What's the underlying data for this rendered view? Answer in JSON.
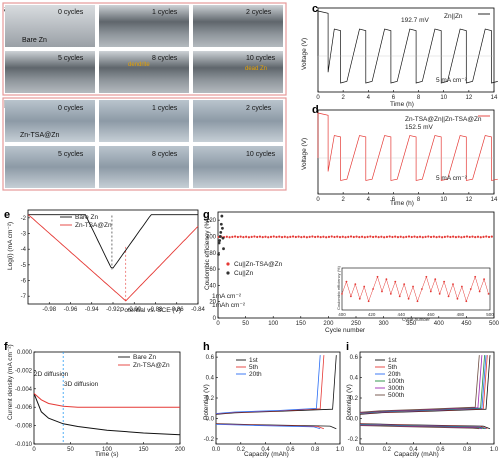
{
  "panel_a": {
    "label": "a",
    "tiles": [
      "0 cycles",
      "1 cycles",
      "2 cycles",
      "5 cycles",
      "8 cycles",
      "10 cycles"
    ],
    "sample": "Bare Zn",
    "annot_dendrite": "dendrite",
    "annot_dead": "dead Zn",
    "border_color": "#e79999"
  },
  "panel_b": {
    "label": "b",
    "tiles": [
      "0 cycles",
      "1 cycles",
      "2 cycles",
      "5 cycles",
      "8 cycles",
      "10 cycles"
    ],
    "sample": "Zn-TSA@Zn",
    "border_color": "#e79999"
  },
  "panel_c": {
    "label": "c",
    "legend": "Zn||Zn",
    "annot": "192.7 mV",
    "current": "5 mA cm⁻²",
    "xlabel": "Time (h)",
    "ylabel": "Voltage (V)",
    "color": "#111111"
  },
  "panel_d": {
    "label": "d",
    "legend": "Zn-TSA@Zn||Zn-TSA@Zn",
    "annot": "152.5 mV",
    "current": "5 mA cm⁻²",
    "xlabel": "Time (h)",
    "ylabel": "Voltage (V)",
    "color": "#e53935"
  },
  "panel_e": {
    "label": "e",
    "legend": [
      "Bare Zn",
      "Zn-TSA@Zn"
    ],
    "xlabel": "Potential vs. SCE (V)",
    "ylabel": "Log(i) (mA cm⁻²)"
  },
  "panel_f": {
    "label": "f",
    "legend": [
      "Bare Zn",
      "Zn-TSA@Zn"
    ],
    "annot_2d": "2D diffusion",
    "annot_3d": "3D diffusion",
    "xlabel": "Time (s)",
    "ylabel": "Current density (mA cm⁻²)"
  },
  "panel_g": {
    "label": "g",
    "legend": [
      "Cu||Zn-TSA@Zn",
      "Cu||Zn"
    ],
    "cond1": "1mA cm⁻²",
    "cond2": "1mAh cm⁻²",
    "xlabel": "Cycle number",
    "ylabel": "Coulombic efficiency (%)",
    "inset_xlabel": "Cycle number",
    "inset_ylabel": "Coulombic efficiency (%)"
  },
  "panel_h": {
    "label": "h",
    "legend": [
      "1st",
      "5th",
      "20th"
    ],
    "xlabel": "Capacity (mAh)",
    "ylabel": "Potential (V)"
  },
  "panel_i": {
    "label": "i",
    "legend": [
      "1st",
      "5th",
      "20th",
      "100th",
      "300th",
      "500th"
    ],
    "xlabel": "Capacity (mAh)",
    "ylabel": "Potential (V)"
  },
  "chart_data": [
    {
      "panel": "c",
      "type": "line",
      "xlabel": "Time (h)",
      "ylabel": "Voltage (V)",
      "xlim": [
        0,
        14
      ],
      "ylim": [
        -0.12,
        0.16
      ],
      "xticks": [
        0,
        2,
        4,
        6,
        8,
        10,
        12,
        14
      ],
      "yticks": [],
      "series": [
        {
          "name": "Zn||Zn",
          "values_desc": "square-wave",
          "high": 0.09,
          "low": -0.09,
          "spike": 0.15,
          "period_h": 1
        }
      ]
    },
    {
      "panel": "d",
      "type": "line",
      "xlabel": "Time (h)",
      "ylabel": "Voltage (V)",
      "xlim": [
        0,
        14
      ],
      "ylim": [
        -0.12,
        0.16
      ],
      "xticks": [
        0,
        2,
        4,
        6,
        8,
        10,
        12,
        14
      ],
      "yticks": [],
      "series": [
        {
          "name": "Zn-TSA@Zn||Zn-TSA@Zn",
          "high": 0.075,
          "low": -0.075,
          "spike": 0.15,
          "period_h": 1
        }
      ]
    },
    {
      "panel": "e",
      "type": "line",
      "xlabel": "Potential vs. SCE (V)",
      "ylabel": "Log(i) (mA cm⁻²)",
      "xlim": [
        -1.0,
        -0.84
      ],
      "ylim": [
        -7.5,
        -1.5
      ],
      "xticks": [
        -0.98,
        -0.96,
        -0.94,
        -0.92,
        -0.9,
        -0.88,
        -0.86,
        -0.84
      ],
      "yticks": [
        -2,
        -3,
        -4,
        -5,
        -6,
        -7
      ],
      "series": [
        {
          "name": "Bare Zn",
          "corr_potential": -0.921,
          "min_logi": -5.3
        },
        {
          "name": "Zn-TSA@Zn",
          "corr_potential": -0.908,
          "min_logi": -7.3
        }
      ]
    },
    {
      "panel": "f",
      "type": "line",
      "xlabel": "Time (s)",
      "ylabel": "Current density (mA cm⁻²)",
      "xlim": [
        0,
        200
      ],
      "ylim": [
        -0.01,
        0.0
      ],
      "xticks": [
        0,
        50,
        100,
        150,
        200
      ],
      "yticks": [
        0.0,
        -0.002,
        -0.004,
        -0.006,
        -0.008,
        -0.01
      ],
      "series": [
        {
          "name": "Bare Zn",
          "x": [
            0,
            10,
            20,
            40,
            60,
            100,
            150,
            200
          ],
          "y": [
            -0.0045,
            -0.0065,
            -0.0072,
            -0.0078,
            -0.0081,
            -0.0085,
            -0.0088,
            -0.009
          ]
        },
        {
          "name": "Zn-TSA@Zn",
          "x": [
            0,
            10,
            20,
            40,
            60,
            100,
            150,
            200
          ],
          "y": [
            -0.0045,
            -0.0052,
            -0.0056,
            -0.0059,
            -0.006,
            -0.006,
            -0.006,
            -0.006
          ]
        }
      ],
      "vline_x": 40
    },
    {
      "panel": "g",
      "type": "scatter",
      "xlabel": "Cycle number",
      "ylabel": "Coulombic efficiency (%)",
      "xlim": [
        0,
        500
      ],
      "ylim": [
        0,
        130
      ],
      "xticks": [
        0,
        50,
        100,
        150,
        200,
        250,
        300,
        350,
        400,
        450,
        500
      ],
      "yticks": [
        0,
        20,
        40,
        60,
        80,
        100,
        120
      ],
      "series": [
        {
          "name": "Cu||Zn-TSA@Zn",
          "steady": 99.5
        },
        {
          "name": "Cu||Zn",
          "x": [
            1,
            2,
            3,
            4,
            5,
            6,
            7,
            8,
            9,
            10
          ],
          "y": [
            78,
            92,
            95,
            100,
            105,
            115,
            125,
            110,
            98,
            85
          ]
        }
      ],
      "inset": {
        "xlim": [
          400,
          500
        ],
        "ylim": [
          99.0,
          100.2
        ],
        "xticks": [
          400,
          420,
          440,
          460,
          480,
          500
        ]
      }
    },
    {
      "panel": "h",
      "type": "line",
      "xlabel": "Capacity (mAh)",
      "ylabel": "Potential (V)",
      "xlim": [
        0,
        1.0
      ],
      "ylim": [
        -0.25,
        0.65
      ],
      "xticks": [
        0.0,
        0.2,
        0.4,
        0.6,
        0.8,
        1.0
      ],
      "yticks": [
        -0.2,
        0.0,
        0.2,
        0.4,
        0.6
      ],
      "series": [
        {
          "name": "1st",
          "end_capacity": 0.97
        },
        {
          "name": "5th",
          "end_capacity": 0.87
        },
        {
          "name": "20th",
          "end_capacity": 0.84
        }
      ]
    },
    {
      "panel": "i",
      "type": "line",
      "xlabel": "Capacity (mAh)",
      "ylabel": "Potential (V)",
      "xlim": [
        0,
        1.0
      ],
      "ylim": [
        -0.25,
        0.65
      ],
      "xticks": [
        0.0,
        0.2,
        0.4,
        0.6,
        0.8,
        1.0
      ],
      "yticks": [
        -0.2,
        0.0,
        0.2,
        0.4,
        0.6
      ],
      "series": [
        {
          "name": "1st",
          "end_capacity": 0.97
        },
        {
          "name": "5th",
          "end_capacity": 0.95
        },
        {
          "name": "20th",
          "end_capacity": 0.94
        },
        {
          "name": "100th",
          "end_capacity": 0.93
        },
        {
          "name": "300th",
          "end_capacity": 0.91
        },
        {
          "name": "500th",
          "end_capacity": 0.89
        }
      ]
    }
  ]
}
